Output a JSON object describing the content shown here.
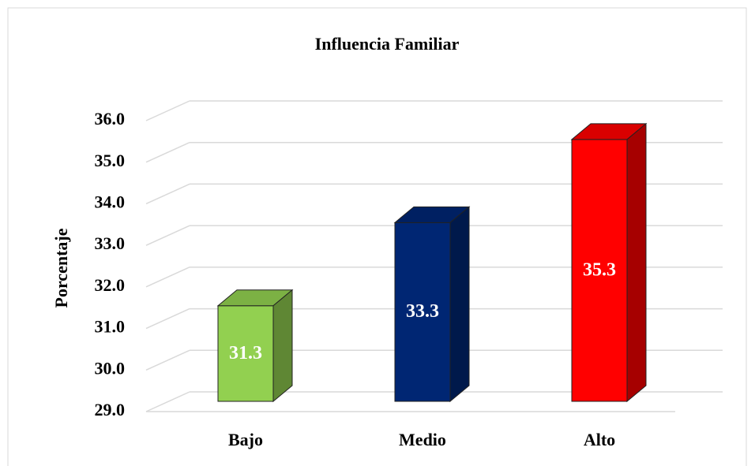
{
  "chart_data": {
    "type": "bar3d",
    "title": "Influencia Familiar",
    "ylabel": "Porcentaje",
    "categories": [
      "Bajo",
      "Medio",
      "Alto"
    ],
    "values": [
      31.3,
      33.3,
      35.3
    ],
    "colors": [
      "#92d050",
      "#002673",
      "#ff0000"
    ],
    "ylim": [
      29,
      36
    ],
    "yticks": [
      {
        "value": 29,
        "label": "29.0"
      },
      {
        "value": 30,
        "label": "30.0"
      },
      {
        "value": 31,
        "label": "31.0"
      },
      {
        "value": 32,
        "label": "32.0"
      },
      {
        "value": 33,
        "label": "33.0"
      },
      {
        "value": 34,
        "label": "34.0"
      },
      {
        "value": 35,
        "label": "35.0"
      },
      {
        "value": 36,
        "label": "36.0"
      }
    ],
    "grid": true
  }
}
